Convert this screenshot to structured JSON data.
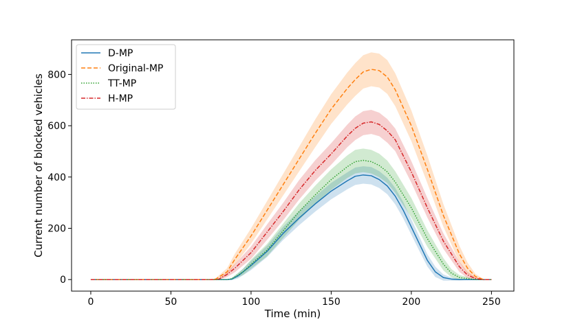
{
  "chart_data": {
    "type": "line",
    "title": "",
    "xlabel": "Time (min)",
    "ylabel": "Current number of blocked vehicles",
    "xlim": [
      -12,
      264
    ],
    "ylim": [
      -45,
      935
    ],
    "xticks": [
      0,
      50,
      100,
      150,
      200,
      250
    ],
    "yticks": [
      0,
      200,
      400,
      600,
      800
    ],
    "grid": false,
    "legend_position": "top-left",
    "series": [
      {
        "name": "D-MP",
        "color": "#1f77b4",
        "style": "solid",
        "x": [
          0,
          80,
          85,
          88,
          92,
          100,
          110,
          120,
          130,
          140,
          150,
          160,
          165,
          170,
          175,
          180,
          185,
          190,
          195,
          200,
          205,
          210,
          215,
          220,
          225,
          230,
          240,
          250
        ],
        "y": [
          0,
          0,
          0,
          2,
          15,
          55,
          110,
          180,
          240,
          295,
          345,
          385,
          403,
          408,
          405,
          390,
          365,
          325,
          270,
          205,
          140,
          75,
          30,
          8,
          2,
          0,
          0,
          0
        ],
        "band": [
          0,
          0,
          0,
          4,
          10,
          18,
          22,
          26,
          28,
          30,
          32,
          33,
          34,
          34,
          34,
          33,
          32,
          32,
          32,
          30,
          28,
          24,
          20,
          12,
          6,
          3,
          0,
          0
        ]
      },
      {
        "name": "Original-MP",
        "color": "#ff7f0e",
        "style": "dashed",
        "x": [
          0,
          70,
          75,
          78,
          85,
          90,
          100,
          110,
          120,
          130,
          140,
          150,
          160,
          165,
          170,
          175,
          180,
          185,
          190,
          200,
          210,
          220,
          230,
          235,
          240,
          245,
          250
        ],
        "y": [
          0,
          0,
          0,
          2,
          30,
          80,
          170,
          270,
          370,
          470,
          570,
          665,
          745,
          780,
          810,
          820,
          815,
          790,
          740,
          600,
          430,
          250,
          100,
          45,
          12,
          0,
          0
        ],
        "band": [
          0,
          0,
          0,
          4,
          14,
          22,
          30,
          36,
          42,
          48,
          54,
          58,
          62,
          64,
          65,
          66,
          66,
          66,
          64,
          60,
          54,
          44,
          32,
          22,
          10,
          3,
          0
        ]
      },
      {
        "name": "TT-MP",
        "color": "#2ca02c",
        "style": "dotted",
        "x": [
          0,
          80,
          85,
          88,
          95,
          100,
          110,
          120,
          130,
          140,
          150,
          160,
          165,
          170,
          175,
          180,
          185,
          190,
          200,
          210,
          220,
          225,
          230,
          240,
          245,
          250
        ],
        "y": [
          0,
          0,
          0,
          3,
          30,
          60,
          115,
          190,
          265,
          330,
          390,
          440,
          460,
          465,
          460,
          445,
          420,
          380,
          280,
          160,
          60,
          25,
          8,
          0,
          0,
          0
        ],
        "band": [
          0,
          0,
          0,
          4,
          12,
          18,
          24,
          28,
          32,
          36,
          40,
          44,
          46,
          46,
          46,
          46,
          44,
          42,
          38,
          32,
          24,
          16,
          10,
          2,
          0,
          0
        ]
      },
      {
        "name": "H-MP",
        "color": "#d62728",
        "style": "dashdot",
        "x": [
          0,
          78,
          80,
          85,
          90,
          100,
          110,
          120,
          130,
          140,
          150,
          160,
          165,
          170,
          175,
          180,
          185,
          190,
          200,
          210,
          220,
          230,
          235,
          240,
          245,
          250
        ],
        "y": [
          0,
          0,
          2,
          20,
          45,
          105,
          185,
          265,
          350,
          425,
          490,
          560,
          590,
          610,
          615,
          605,
          580,
          545,
          420,
          280,
          150,
          50,
          18,
          4,
          0,
          0
        ],
        "band": [
          0,
          0,
          3,
          10,
          16,
          24,
          30,
          34,
          38,
          40,
          42,
          44,
          46,
          47,
          47,
          46,
          46,
          44,
          42,
          38,
          30,
          20,
          12,
          5,
          2,
          0
        ]
      }
    ]
  }
}
